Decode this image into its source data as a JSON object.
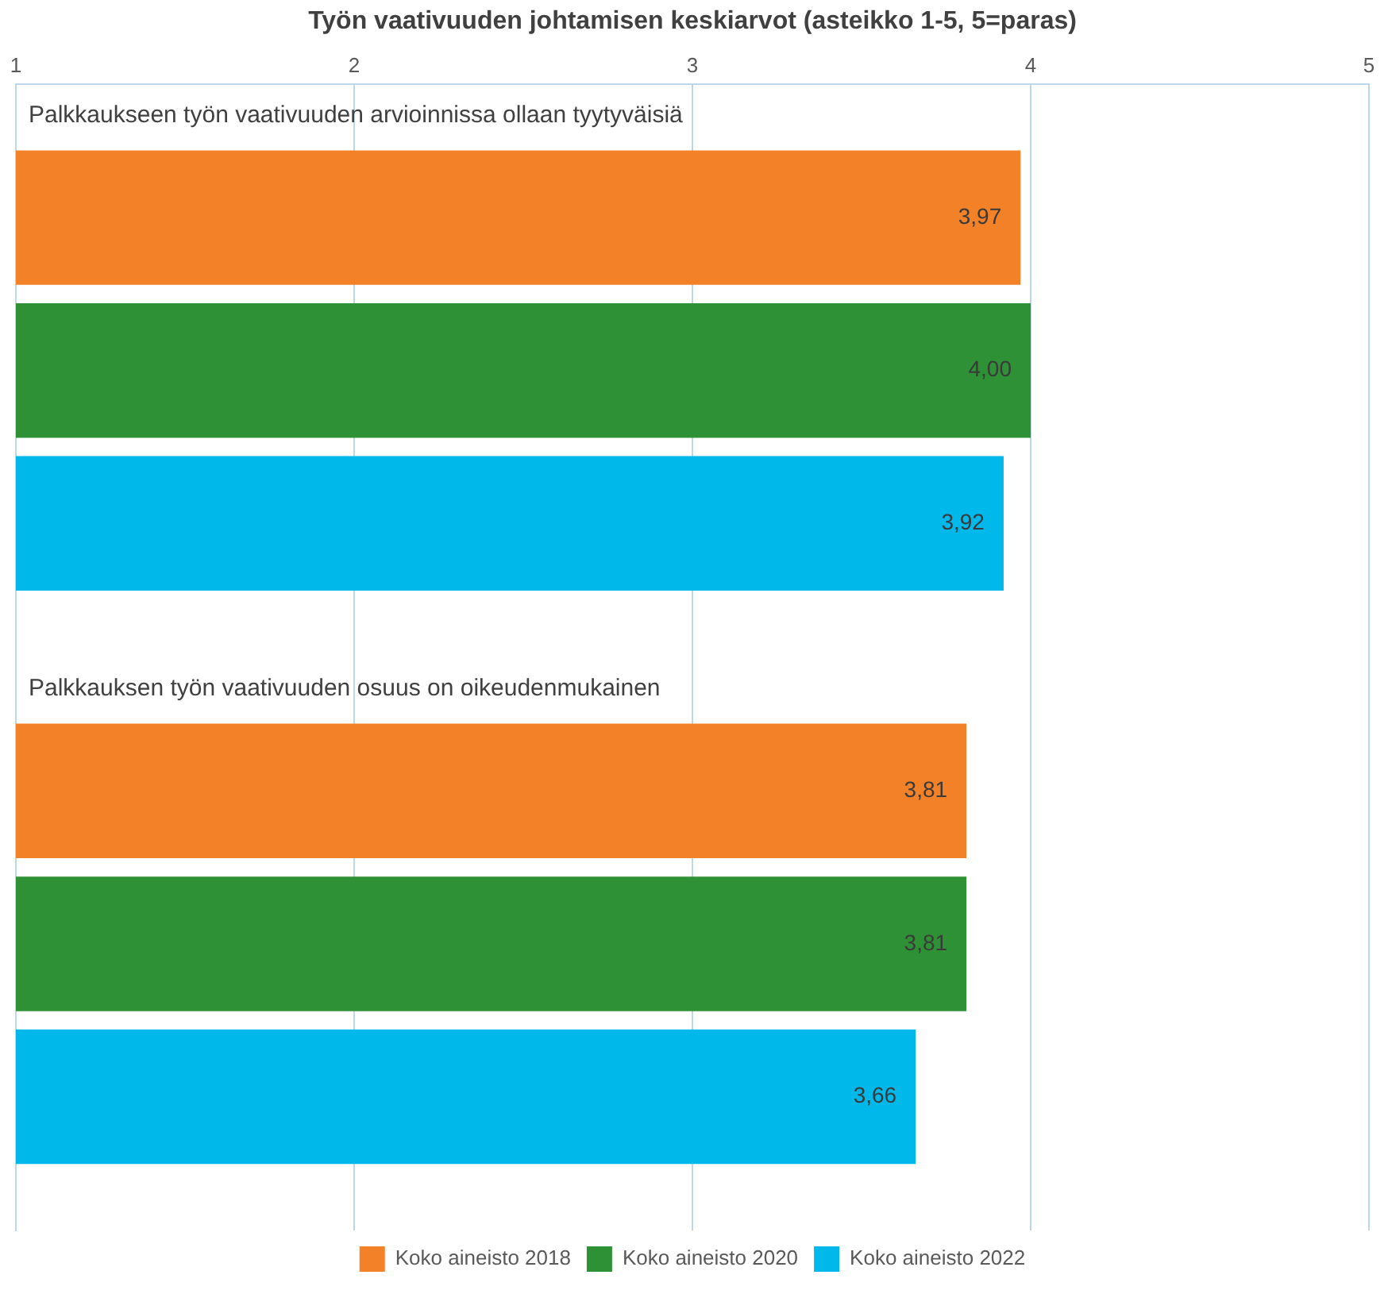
{
  "chart_data": {
    "type": "bar",
    "orientation": "horizontal",
    "title": "Työn vaativuuden johtamisen keskiarvot (asteikko 1-5, 5=paras)",
    "categories": [
      "Palkkaukseen työn vaativuuden arvioinnissa ollaan tyytyväisiä",
      "Palkkauksen työn vaativuuden osuus on oikeudenmukainen"
    ],
    "series": [
      {
        "name": "Koko aineisto 2018",
        "color": "#f28128",
        "values": [
          3.97,
          3.81
        ],
        "value_labels": [
          "3,97",
          "3,81"
        ]
      },
      {
        "name": "Koko aineisto 2020",
        "color": "#2e9135",
        "values": [
          4.0,
          3.81
        ],
        "value_labels": [
          "4,00",
          "3,81"
        ]
      },
      {
        "name": "Koko aineisto 2022",
        "color": "#00b8ea",
        "values": [
          3.92,
          3.66
        ],
        "value_labels": [
          "3,92",
          "3,66"
        ]
      }
    ],
    "xlim": [
      1,
      5
    ],
    "xticks": [
      1,
      2,
      3,
      4,
      5
    ],
    "grid": "x",
    "legend": "bottom"
  }
}
